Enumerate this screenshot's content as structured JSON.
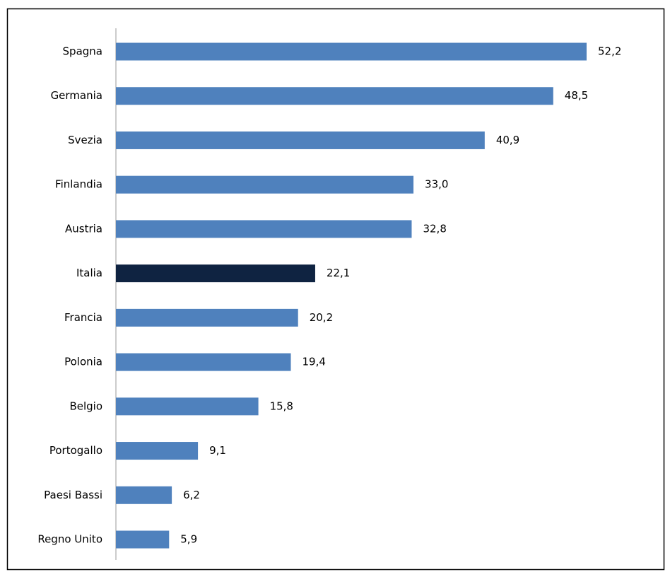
{
  "chart_data": {
    "type": "hbar",
    "categories": [
      "Spagna",
      "Germania",
      "Svezia",
      "Finlandia",
      "Austria",
      "Italia",
      "Francia",
      "Polonia",
      "Belgio",
      "Portogallo",
      "Paesi Bassi",
      "Regno Unito"
    ],
    "values": [
      52.2,
      48.5,
      40.9,
      33.0,
      32.8,
      22.1,
      20.2,
      19.4,
      15.8,
      9.1,
      6.2,
      5.9
    ],
    "value_labels": [
      "52,2",
      "48,5",
      "40,9",
      "33,0",
      "32,8",
      "22,1",
      "20,2",
      "19,4",
      "15,8",
      "9,1",
      "6,2",
      "5,9"
    ],
    "colors": [
      "#4f81bd",
      "#4f81bd",
      "#4f81bd",
      "#4f81bd",
      "#4f81bd",
      "#0f2341",
      "#4f81bd",
      "#4f81bd",
      "#4f81bd",
      "#4f81bd",
      "#4f81bd",
      "#4f81bd"
    ]
  }
}
